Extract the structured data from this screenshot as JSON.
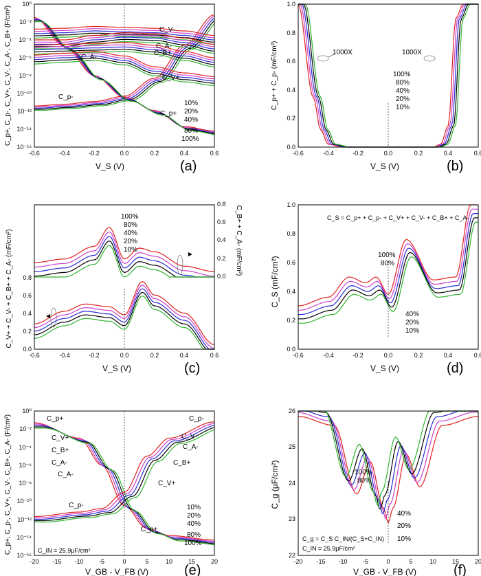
{
  "colors": {
    "c10": "#2db52d",
    "c20": "#000000",
    "c40": "#2a2ad6",
    "c80": "#cc3fcc",
    "c100": "#e0201f"
  },
  "chart_data": [
    {
      "id": "a",
      "panel_label": "(a)",
      "type": "line",
      "yscale": "log",
      "xlim": [
        -0.6,
        0.6
      ],
      "ylim_exp": [
        -16,
        0
      ],
      "xticks": [
        "-0.6",
        "-0.4",
        "-0.2",
        "0.0",
        "0.2",
        "0.4",
        "0.6"
      ],
      "yticks": [
        "10⁻¹⁶",
        "10⁻¹⁴",
        "10⁻¹²",
        "10⁻¹⁰",
        "10⁻⁸",
        "10⁻⁶",
        "10⁻⁴",
        "10⁻²",
        "10⁰"
      ],
      "xlabel": "V_S  (V)",
      "ylabel": "C_p+, C_p-, C_V+, C_V-, C_A-, C_B+  (F/cm²)",
      "annotations": [
        "C_V-",
        "C_A-",
        "C_B+",
        "C_A-",
        "C_V+",
        "C_p-",
        "C_p+"
      ],
      "legend": [
        "10%",
        "20%",
        "40%",
        "80%",
        "100%"
      ],
      "series": [
        {
          "name": "C_p-",
          "x": [
            -0.6,
            -0.4,
            -0.2,
            0.0,
            0.2,
            0.4,
            0.6
          ],
          "y_log10": [
            -11.4,
            -11.2,
            -10.9,
            -10.3,
            -8.3,
            -4.6,
            -1.2
          ]
        },
        {
          "name": "C_p+",
          "x": [
            -0.6,
            -0.4,
            -0.2,
            0.0,
            0.2,
            0.4,
            0.6
          ],
          "y_log10": [
            -1.5,
            -4.7,
            -8.0,
            -10.4,
            -11.9,
            -13.7,
            -14.2
          ]
        },
        {
          "name": "C_V-",
          "x": [
            -0.6,
            -0.4,
            -0.2,
            0.0,
            0.2,
            0.4,
            0.6
          ],
          "y_log10": [
            -2.8,
            -2.7,
            -2.5,
            -2.6,
            -2.7,
            -3.0,
            -3.5
          ]
        },
        {
          "name": "C_A-",
          "x": [
            -0.6,
            -0.4,
            -0.2,
            0.0,
            0.2,
            0.4,
            0.6
          ],
          "y_log10": [
            -4.0,
            -4.0,
            -3.5,
            -3.2,
            -3.3,
            -3.8,
            -4.5
          ]
        },
        {
          "name": "C_B+",
          "x": [
            -0.6,
            -0.4,
            -0.2,
            0.0,
            0.2,
            0.4,
            0.6
          ],
          "y_log10": [
            -4.6,
            -4.5,
            -4.4,
            -4.3,
            -4.6,
            -5.3,
            -6.0
          ]
        },
        {
          "name": "C_V+",
          "x": [
            -0.6,
            -0.4,
            -0.2,
            0.0,
            0.2,
            0.4,
            0.6
          ],
          "y_log10": [
            -5.7,
            -5.5,
            -5.3,
            -5.8,
            -7.0,
            -7.7,
            -8.1
          ]
        }
      ]
    },
    {
      "id": "b",
      "panel_label": "(b)",
      "type": "line",
      "xlim": [
        -0.6,
        0.6
      ],
      "ylim": [
        0,
        1.0
      ],
      "xticks": [
        "-0.6",
        "-0.4",
        "-0.2",
        "0.0",
        "0.2",
        "0.4",
        "0.6"
      ],
      "yticks": [
        "0.0",
        "0.2",
        "0.4",
        "0.6",
        "0.8",
        "1.0"
      ],
      "xlabel": "V_S  (V)",
      "ylabel": "C_p+ + C_p-  (mF/cm²)",
      "annotations": [
        "1000X",
        "1000X"
      ],
      "legend": [
        "100%",
        "80%",
        "40%",
        "20%",
        "10%"
      ],
      "series": [
        {
          "name": "100%",
          "x": [
            -0.6,
            -0.5,
            -0.45,
            -0.4,
            -0.3,
            0.3,
            0.35,
            0.4,
            0.45,
            0.5,
            0.6
          ],
          "y": [
            1.0,
            0.35,
            0.12,
            0.02,
            0,
            0,
            0.02,
            0.15,
            0.9,
            1.0,
            1.0
          ]
        }
      ]
    },
    {
      "id": "c",
      "panel_label": "(c)",
      "type": "line",
      "xlim": [
        -0.6,
        0.6
      ],
      "xticks": [
        "-0.6",
        "-0.4",
        "-0.2",
        "0.0",
        "0.2",
        "0.4",
        "0.6"
      ],
      "yticks_left": [
        "0.0",
        "0.2",
        "0.4",
        "0.6",
        "0.8"
      ],
      "yticks_right": [
        "0.0",
        "0.2",
        "0.4",
        "0.6",
        "0.8"
      ],
      "xlabel": "V_S  (V)",
      "ylabel": "C_V+ + C_V- + C_B+ + C_A-  (mF/cm²)",
      "ylabel_right": "C_B+ + C_A-  (mF/cm²)",
      "legend": [
        "100%",
        "80%",
        "40%",
        "20%",
        "10%"
      ],
      "series": [
        {
          "name": "top-100%",
          "x": [
            -0.6,
            -0.4,
            -0.2,
            -0.1,
            0.0,
            0.1,
            0.2,
            0.4,
            0.6
          ],
          "y": [
            0.16,
            0.2,
            0.34,
            0.55,
            0.2,
            0.32,
            0.28,
            0.12,
            0.06
          ]
        },
        {
          "name": "bottom-100%",
          "x": [
            -0.6,
            -0.4,
            -0.26,
            -0.1,
            0.0,
            0.12,
            0.2,
            0.4,
            0.6
          ],
          "y": [
            0.28,
            0.42,
            0.5,
            0.47,
            0.38,
            0.75,
            0.6,
            0.4,
            0.05
          ]
        }
      ]
    },
    {
      "id": "d",
      "panel_label": "(d)",
      "type": "line",
      "xlim": [
        -0.6,
        0.6
      ],
      "ylim": [
        0,
        1.0
      ],
      "xticks": [
        "-0.6",
        "-0.4",
        "-0.2",
        "0.0",
        "0.2",
        "0.4",
        "0.6"
      ],
      "yticks": [
        "0.0",
        "0.2",
        "0.4",
        "0.6",
        "0.8",
        "1.0"
      ],
      "xlabel": "V_S  (V)",
      "ylabel": "C_S  (mF/cm²)",
      "formula": "C_S = C_p+ + C_p- + C_V+ + C_V- + C_B+ + C_A-",
      "legend": [
        "100%",
        "80%",
        "40%",
        "20%",
        "10%"
      ],
      "series": [
        {
          "name": "100%",
          "x": [
            -0.6,
            -0.4,
            -0.26,
            -0.15,
            -0.08,
            0.0,
            0.12,
            0.3,
            0.45,
            0.55
          ],
          "y": [
            0.3,
            0.36,
            0.5,
            0.46,
            0.5,
            0.38,
            0.76,
            0.48,
            0.5,
            1.0
          ]
        }
      ]
    },
    {
      "id": "e",
      "panel_label": "(e)",
      "type": "line",
      "yscale": "log",
      "xlim": [
        -20,
        20
      ],
      "ylim_exp": [
        -16,
        0
      ],
      "xticks": [
        "-20",
        "-15",
        "-10",
        "-5",
        "0",
        "5",
        "10",
        "15",
        "20"
      ],
      "yticks": [
        "10⁻¹⁶",
        "10⁻¹⁴",
        "10⁻¹²",
        "10⁻¹⁰",
        "10⁻⁸",
        "10⁻⁶",
        "10⁻⁴",
        "10⁻²",
        "10⁰"
      ],
      "xlabel": "V_GB - V_FB  (V)",
      "ylabel": "C_p+, C_p-, C_V+, C_V-, C_B+, C_A-  (F/cm²)",
      "annotations": [
        "C_p+",
        "C_V+",
        "C_B+",
        "C_A-",
        "C_A-",
        "C_p-",
        "C_p-",
        "C_V-",
        "C_A-",
        "C_B+",
        "C_V+",
        "C_p+"
      ],
      "note": "C_IN = 25.9μF/cm²",
      "legend": [
        "10%",
        "20%",
        "40%",
        "80%",
        "100%"
      ],
      "series": [
        {
          "name": "C_p+",
          "x": [
            -20,
            -10,
            -5,
            0,
            5,
            10,
            20
          ],
          "y_log10": [
            -1.3,
            -3.0,
            -6,
            -10.5,
            -13,
            -13.8,
            -14.3
          ]
        },
        {
          "name": "C_p-",
          "x": [
            -20,
            -10,
            -5,
            0,
            5,
            10,
            20
          ],
          "y_log10": [
            -11.7,
            -11.2,
            -10.8,
            -9,
            -5,
            -3,
            -1.2
          ]
        }
      ]
    },
    {
      "id": "f",
      "panel_label": "(f)",
      "type": "line",
      "xlim": [
        -20,
        20
      ],
      "ylim": [
        22,
        26
      ],
      "xticks": [
        "-20",
        "-15",
        "-10",
        "-5",
        "0",
        "5",
        "10",
        "15",
        "20"
      ],
      "yticks": [
        "22",
        "23",
        "24",
        "25",
        "26"
      ],
      "xlabel": "V_GB - V_FB  (V)",
      "ylabel": "C_g  (μF/cm²)",
      "formula1": "C_g = C_S C_IN/(C_S+C_IN)",
      "formula2": "C_IN = 25.9μF/cm²",
      "legend": [
        "100%",
        "80%",
        "40%",
        "20%",
        "10%"
      ],
      "series": [
        {
          "name": "10%",
          "x": [
            -20,
            -12,
            -7,
            -4,
            -1,
            0,
            1,
            4,
            7,
            12,
            20
          ],
          "y": [
            25.85,
            25.6,
            23.7,
            24.6,
            23.3,
            22.9,
            23.3,
            24.8,
            23.9,
            25.6,
            25.85
          ]
        }
      ]
    }
  ]
}
